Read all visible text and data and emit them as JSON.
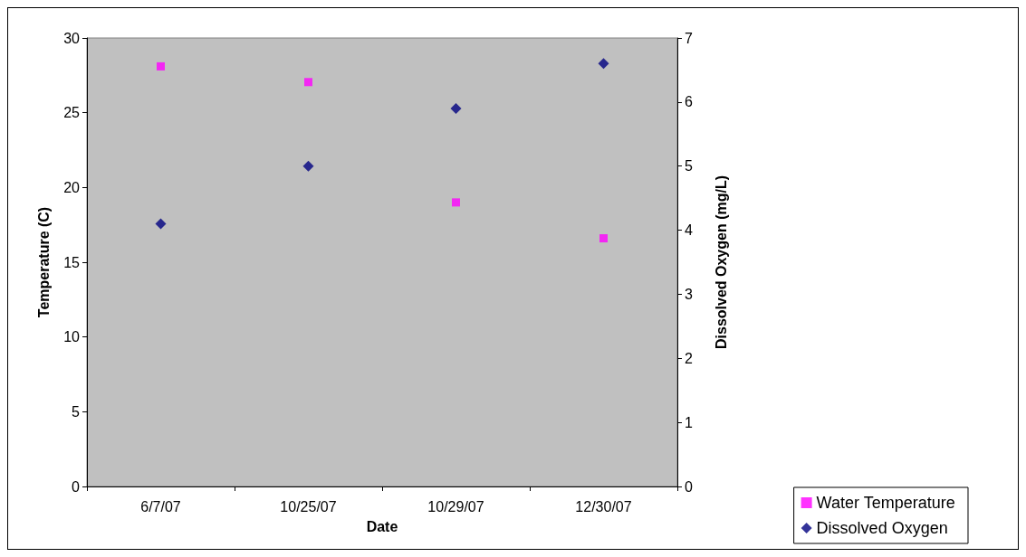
{
  "chart_data": {
    "type": "scatter",
    "xlabel": "Date",
    "ylabel": "Temperature (C)",
    "y2label": "Dissolved Oxygen (mg/L)",
    "categories": [
      "6/7/07",
      "10/25/07",
      "10/29/07",
      "12/30/07"
    ],
    "series": [
      {
        "name": "Water Temperature",
        "color": "#ff00ff",
        "marker": "square",
        "values": [
          28.1,
          27.05,
          19.0,
          16.6
        ]
      },
      {
        "name": "Dissolved Oxygen",
        "color": "#000080",
        "marker": "diamond",
        "axis": "y2",
        "values": [
          4.1,
          5.0,
          5.9,
          6.6
        ]
      }
    ],
    "ylim": [
      0,
      30
    ],
    "yticks": [
      0,
      5,
      10,
      15,
      20,
      25,
      30
    ],
    "y2lim": [
      0,
      7
    ],
    "y2ticks": [
      0,
      1,
      2,
      3,
      4,
      5,
      6,
      7
    ],
    "grid": false,
    "legend": "bottom right"
  }
}
